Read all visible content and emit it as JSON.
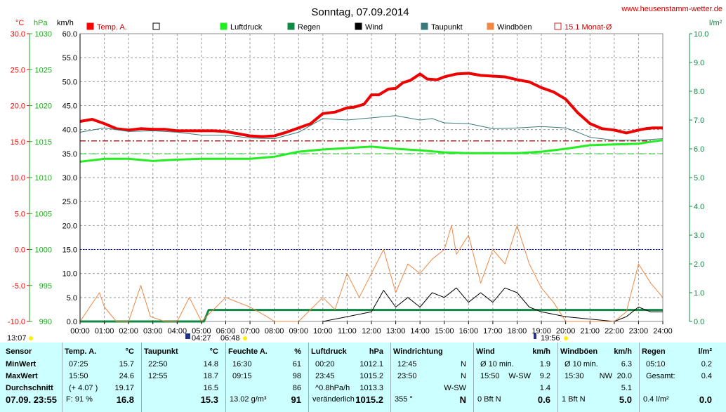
{
  "header": {
    "title": "Sonntag, 07.09.2014",
    "site": "www.heusenstamm-wetter.de"
  },
  "axes": {
    "temp_unit": "°C",
    "hpa_unit": "hPa",
    "kmh_unit": "km/h",
    "rain_unit": "l/m²",
    "temp_ticks": [
      "30.0",
      "25.0",
      "20.0",
      "15.0",
      "10.0",
      "5.0",
      "0.0",
      "-5.0",
      "-10.0"
    ],
    "hpa_ticks": [
      "1030",
      "1025",
      "1020",
      "1015",
      "1010",
      "1005",
      "1000",
      "995",
      "990"
    ],
    "kmh_ticks": [
      "60.0",
      "55.0",
      "50.0",
      "45.0",
      "40.0",
      "35.0",
      "30.0",
      "25.0",
      "20.0",
      "15.0",
      "10.0",
      "5.0",
      "0.0"
    ],
    "rain_ticks": [
      "10.0",
      "9.0",
      "8.0",
      "7.0",
      "6.0",
      "5.0",
      "4.0",
      "3.0",
      "2.0",
      "1.0",
      "0.0"
    ],
    "x_ticks": [
      "00:00",
      "01:00",
      "02:00",
      "03:00",
      "04:00",
      "05:00",
      "06:00",
      "07:00",
      "08:00",
      "09:00",
      "10:00",
      "11:00",
      "12:00",
      "13:00",
      "14:00",
      "15:00",
      "16:00",
      "17:00",
      "18:00",
      "19:00",
      "20:00",
      "21:00",
      "22:00",
      "23:00",
      "24:00"
    ]
  },
  "legend": [
    {
      "label": "Temp. A.",
      "color": "#ff0000",
      "fill": true
    },
    {
      "label": "",
      "color": "#000000",
      "fill": false
    },
    {
      "label": "Luftdruck",
      "color": "#22ee22",
      "fill": true
    },
    {
      "label": "Regen",
      "color": "#118844",
      "fill": true
    },
    {
      "label": "Wind",
      "color": "#000000",
      "fill": true
    },
    {
      "label": "Taupunkt",
      "color": "#3a7a7a",
      "fill": true
    },
    {
      "label": "Windböen",
      "color": "#ee8844",
      "fill": true
    },
    {
      "label": "15.1 Monat-Ø",
      "color": "#cc2222",
      "fill": false
    }
  ],
  "sun": {
    "moon_low": "13:07",
    "sunrise": "04:27",
    "dawn": "06:48",
    "sunset": "19:56"
  },
  "chart_data": {
    "type": "line",
    "title": "Sonntag, 07.09.2014",
    "x_unit": "hours",
    "xlim": [
      0,
      24
    ],
    "temp_ylim": [
      -10,
      30
    ],
    "hpa_ylim": [
      990,
      1030
    ],
    "kmh_ylim": [
      0,
      60
    ],
    "rain_ylim": [
      0,
      10
    ],
    "month_avg_temp": 15.1,
    "series": [
      {
        "name": "Temp. A.",
        "axis": "temp",
        "x": [
          0,
          0.5,
          1,
          1.5,
          2,
          2.5,
          3,
          3.5,
          4,
          4.5,
          5,
          5.5,
          6,
          6.5,
          7,
          7.5,
          8,
          8.5,
          9,
          9.5,
          10,
          10.5,
          11,
          11.3,
          11.7,
          12,
          12.3,
          12.7,
          13,
          13.3,
          13.6,
          14,
          14.3,
          14.7,
          15,
          15.5,
          16,
          16.5,
          17,
          17.5,
          18,
          18.5,
          19,
          19.5,
          20,
          20.5,
          21,
          21.5,
          22,
          22.5,
          23,
          23.3,
          23.6,
          24
        ],
        "y": [
          17.8,
          18.1,
          17.5,
          16.8,
          16.6,
          16.8,
          16.7,
          16.7,
          16.5,
          16.5,
          16.5,
          16.5,
          16.4,
          16.1,
          15.8,
          15.7,
          15.8,
          16.3,
          16.9,
          17.5,
          18.9,
          19.1,
          19.7,
          19.8,
          20.2,
          21.5,
          21.5,
          22.3,
          22.4,
          23.2,
          23.5,
          24.4,
          23.7,
          23.6,
          24.0,
          24.4,
          24.5,
          24.2,
          24.1,
          24.0,
          23.6,
          23.3,
          22.5,
          21.9,
          20.9,
          19.0,
          17.5,
          16.8,
          16.6,
          16.2,
          16.6,
          16.8,
          16.9,
          16.9
        ]
      },
      {
        "name": "Taupunkt",
        "axis": "temp",
        "x": [
          0,
          1,
          2,
          3,
          4,
          5,
          6,
          7,
          8,
          9,
          10,
          11,
          12,
          13,
          14,
          14.5,
          15,
          16,
          17,
          18,
          19,
          20,
          20.5,
          21,
          22,
          23,
          24
        ],
        "y": [
          16.3,
          16.9,
          16.4,
          16.5,
          16.3,
          15.9,
          15.9,
          15.5,
          15.4,
          16.3,
          18.2,
          18.0,
          18.3,
          18.6,
          18.0,
          18.2,
          17.6,
          17.5,
          16.8,
          16.9,
          17.1,
          16.9,
          16.3,
          15.6,
          15.2,
          15.2,
          15.4
        ]
      },
      {
        "name": "Luftdruck",
        "axis": "hpa",
        "x": [
          0,
          1,
          2,
          3,
          4,
          5,
          6,
          7,
          8,
          9,
          10,
          11,
          12,
          13,
          14,
          15,
          16,
          17,
          18,
          19,
          20,
          21,
          22,
          23,
          23.55,
          24
        ],
        "y": [
          1012.2,
          1012.6,
          1012.6,
          1012.3,
          1012.5,
          1012.6,
          1012.6,
          1012.6,
          1012.9,
          1013.6,
          1013.9,
          1014.1,
          1014.3,
          1014.0,
          1013.8,
          1013.5,
          1013.4,
          1013.4,
          1013.4,
          1013.6,
          1014.0,
          1014.5,
          1014.6,
          1014.7,
          1015.0,
          1015.2
        ]
      },
      {
        "name": "Regen",
        "axis": "rain",
        "x": [
          0,
          5.1,
          5.3,
          24
        ],
        "y": [
          0,
          0,
          0.4,
          0.4
        ]
      },
      {
        "name": "Wind",
        "axis": "kmh",
        "x": [
          10,
          11,
          12,
          12.5,
          13,
          13.5,
          14,
          14.5,
          15,
          15.5,
          16,
          16.5,
          17,
          17.5,
          18,
          18.5,
          19,
          20,
          22,
          22.5,
          23,
          23.5,
          24
        ],
        "y": [
          0,
          1,
          2,
          6.5,
          3,
          5,
          3,
          6,
          5,
          7,
          4,
          6,
          4,
          7,
          6,
          3,
          2,
          1,
          0,
          1,
          3,
          2,
          2
        ]
      },
      {
        "name": "Windböen",
        "axis": "kmh",
        "x": [
          0,
          0.8,
          1,
          1.5,
          2,
          2.5,
          2.9,
          3.5,
          4,
          4.5,
          5,
          6,
          7,
          7.7,
          8,
          9,
          10,
          10.5,
          11,
          11.5,
          12,
          12.5,
          13,
          13.5,
          14,
          14.5,
          15,
          15.3,
          15.5,
          16,
          16.5,
          17,
          17.5,
          18,
          18.5,
          19,
          19.5,
          20,
          21,
          22,
          22.5,
          23,
          23.5,
          24
        ],
        "y": [
          0,
          6,
          3,
          0,
          0,
          7.5,
          1,
          0,
          0,
          5,
          0,
          5,
          3,
          1,
          0,
          0,
          5,
          2.5,
          10,
          5,
          10,
          15,
          6,
          12,
          10,
          13,
          15,
          20,
          14,
          18,
          8,
          15,
          12,
          20,
          12,
          7,
          4,
          0,
          0,
          0,
          2,
          12,
          8,
          5
        ]
      }
    ]
  },
  "table": {
    "row_labels": {
      "header": "Sensor",
      "min": "MinWert",
      "max": "MaxWert",
      "avg": "Durchschnitt",
      "now": "07.09.  23:55"
    },
    "cols": [
      {
        "title": "Temp. A.",
        "unit": "°C",
        "min_t": "07:25",
        "min_v": "15.7",
        "max_t": "15:50",
        "max_v": "24.6",
        "avg_t": "(+ 4.07 )",
        "avg_v": "19.17",
        "now_t": "F: 91 %",
        "now_v": "16.8"
      },
      {
        "title": "Taupunkt",
        "unit": "°C",
        "min_t": "22:50",
        "min_v": "14.8",
        "max_t": "12:55",
        "max_v": "18.7",
        "avg_t": "",
        "avg_v": "16.5",
        "now_t": "",
        "now_v": "15.3"
      },
      {
        "title": "Feuchte A.",
        "unit": "%",
        "min_t": "16:30",
        "min_v": "61",
        "max_t": "09:15",
        "max_v": "98",
        "avg_t": "",
        "avg_v": "86",
        "now_t": "13.02 g/m³",
        "now_v": "91"
      },
      {
        "title": "Luftdruck",
        "unit": "hPa",
        "min_t": "00:20",
        "min_v": "1012.1",
        "max_t": "23:45",
        "max_v": "1015.2",
        "avg_t": "^0.8hPa/h",
        "avg_v": "1013.3",
        "now_t": "veränderlich",
        "now_v": "1015.2"
      },
      {
        "title": "Windrichtung",
        "unit": "",
        "min_t": "12:45",
        "min_v": "N",
        "max_t": "23:50",
        "max_v": "N",
        "avg_t": "",
        "avg_v": "W-SW",
        "now_t": "355 °",
        "now_v": "N"
      },
      {
        "title": "Wind",
        "unit": "km/h",
        "min_t": "Ø 10 min.",
        "min_v": "1.9",
        "max_t": "15:50",
        "max_m": "W-SW",
        "max_v": "9.2",
        "avg_t": "",
        "avg_v": "1.4",
        "now_t": "0 Bft N",
        "now_v": "0.6"
      },
      {
        "title": "Windböen",
        "unit": "km/h",
        "min_t": "Ø 10 min.",
        "min_v": "6.3",
        "max_t": "15:30",
        "max_m": "NW",
        "max_v": "20.0",
        "avg_t": "",
        "avg_v": "5.1",
        "now_t": "1 Bft N",
        "now_v": "5.0"
      },
      {
        "title": "Regen",
        "unit": "l/m²",
        "min_t": "05:10",
        "min_v": "0.2",
        "max_t": "Gesamt:",
        "max_v": "0.4",
        "avg_t": "",
        "avg_v": "",
        "now_t": "0.4 l/m²",
        "now_v": "0.0"
      }
    ]
  }
}
